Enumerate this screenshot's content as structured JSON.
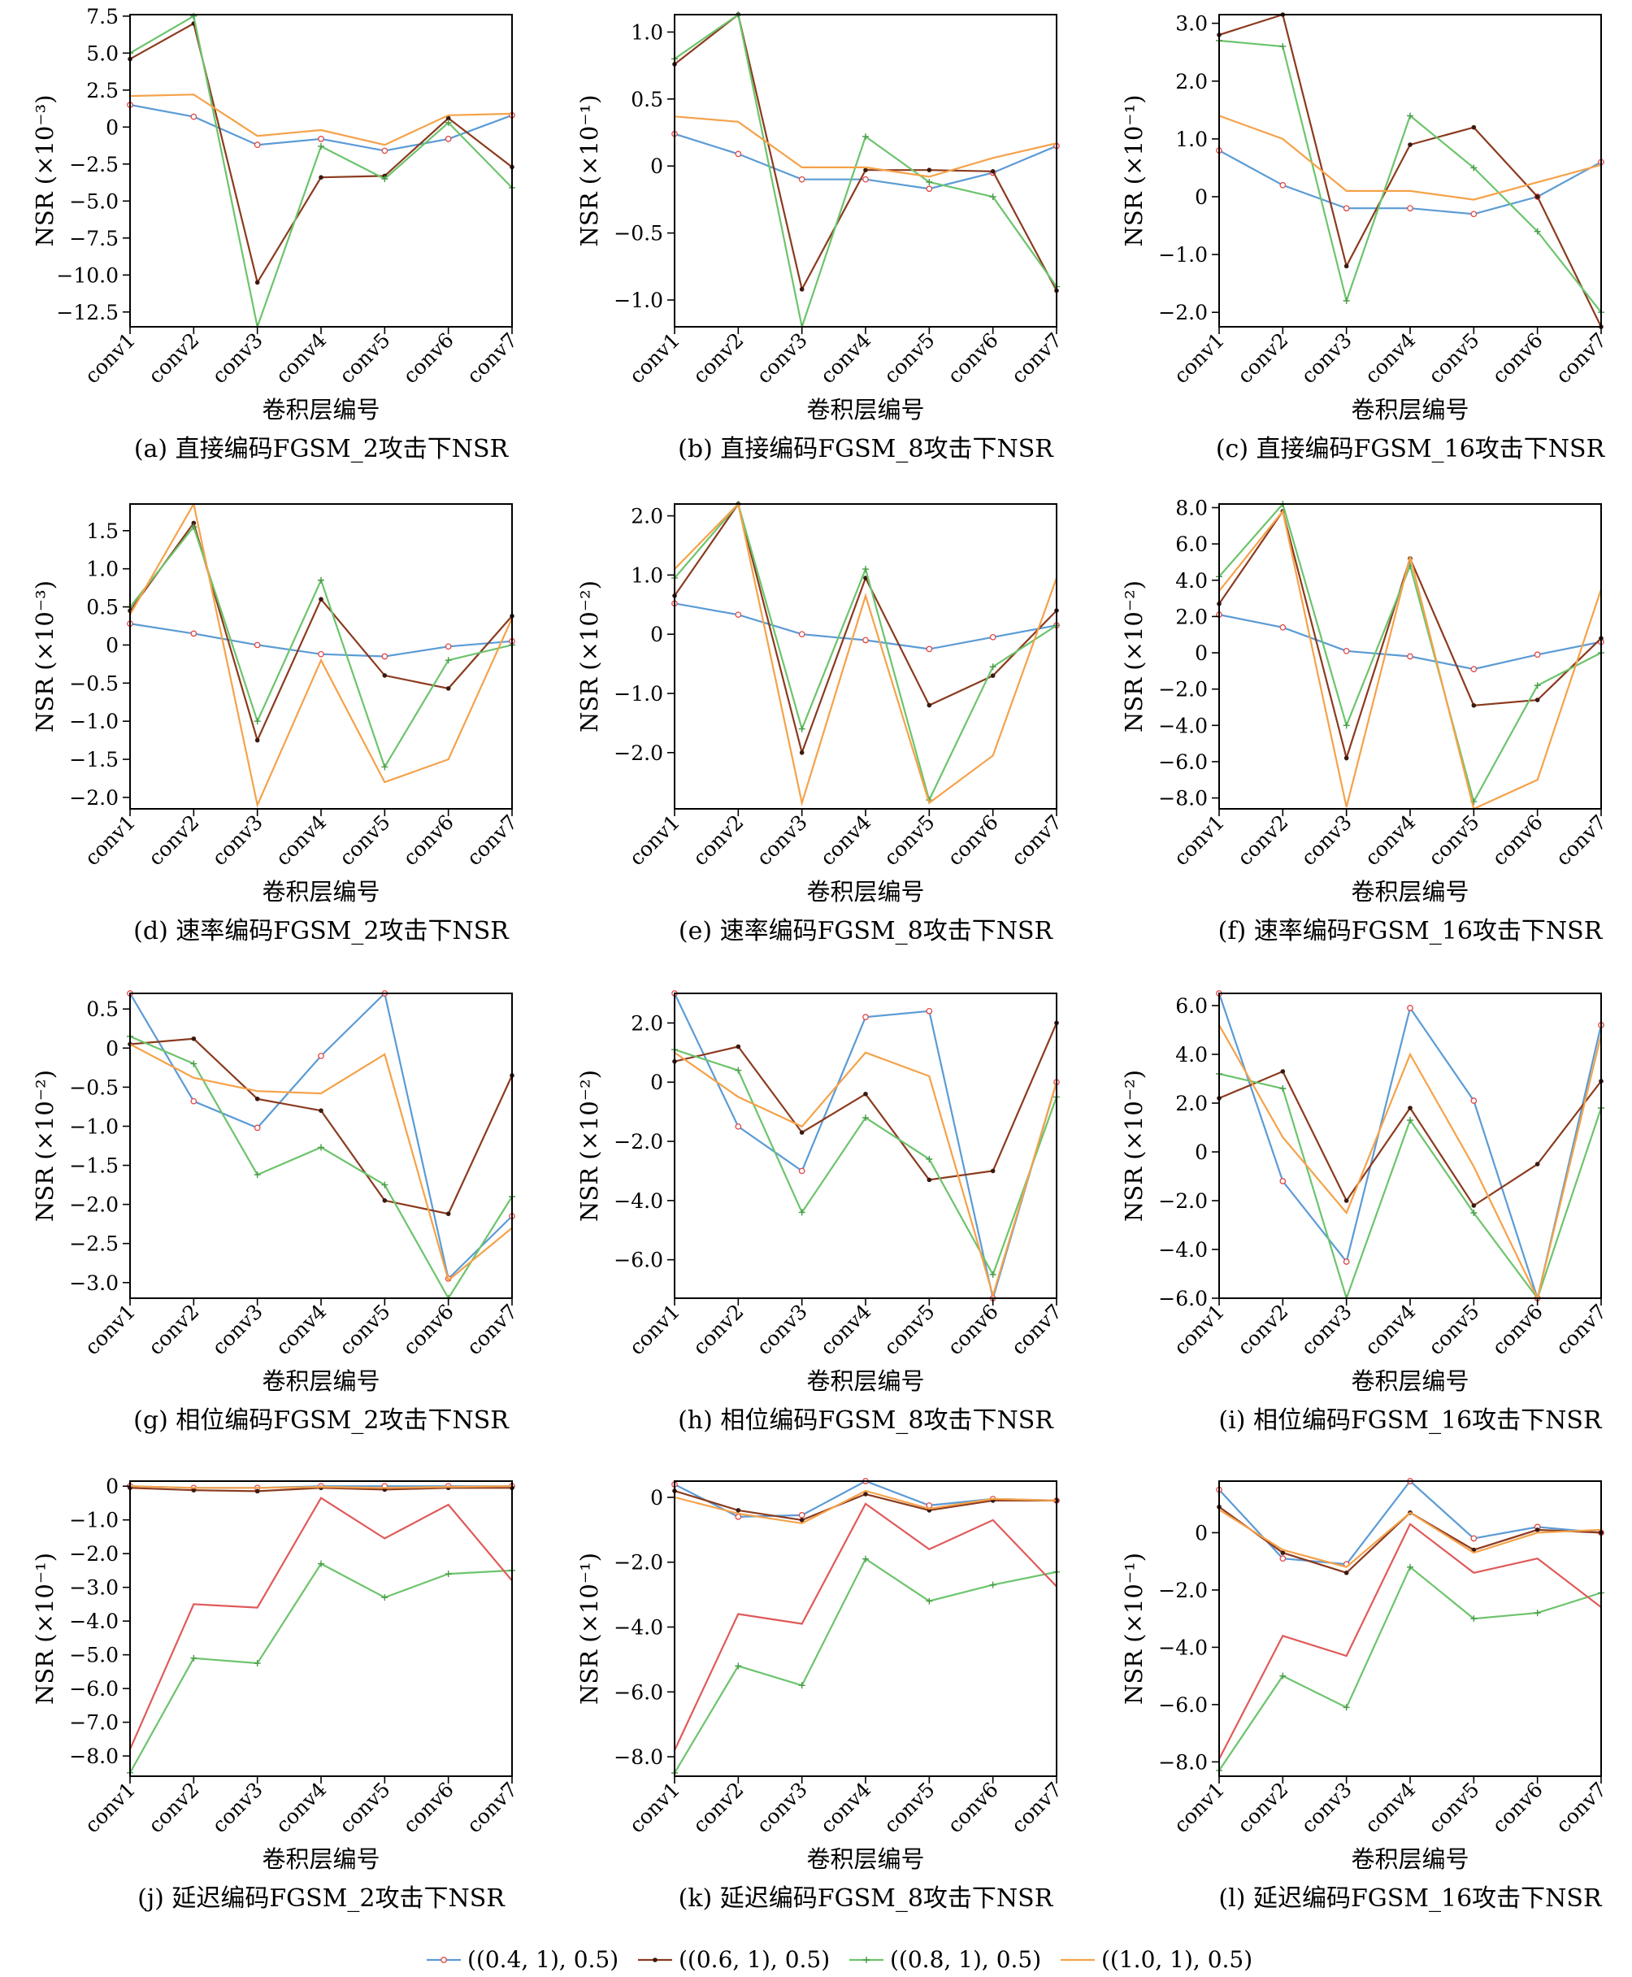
{
  "series_style": [
    {
      "name": "((0.4, 1), 0.5)",
      "color": "#5b9bd5",
      "marker": "circle"
    },
    {
      "name": "((0.6, 1), 0.5)",
      "color": "#8b3a1e",
      "marker": "dot"
    },
    {
      "name": "((0.8, 1), 0.5)",
      "color": "#6cc46c",
      "marker": "plus"
    },
    {
      "name": "((1.0, 1), 0.5)",
      "color": "#f5a24a",
      "marker": "none"
    }
  ],
  "legend": {
    "items": [
      "((0.4, 1), 0.5)",
      "((0.6, 1), 0.5)",
      "((0.8, 1), 0.5)",
      "((1.0, 1), 0.5)"
    ]
  },
  "chart_data": [
    {
      "type": "line",
      "caption": "(a) 直接编码FGSM_2攻击下NSR",
      "xlabel": "卷积层编号",
      "ylabel": "NSR (×10⁻³)",
      "categories": [
        "conv1",
        "conv2",
        "conv3",
        "conv4",
        "conv5",
        "conv6",
        "conv7"
      ],
      "ylim": [
        -13.5,
        7.6
      ],
      "yticks": [
        7.5,
        5.0,
        2.5,
        0,
        -2.5,
        -5.0,
        -7.5,
        -10.0,
        -12.5
      ],
      "ytick_labels": [
        "7.5",
        "5.0",
        "2.5",
        "0",
        "−2.5",
        "−5.0",
        "−7.5",
        "−10.0",
        "−12.5"
      ],
      "series": [
        {
          "name": "((0.4, 1), 0.5)",
          "values": [
            1.5,
            0.7,
            -1.2,
            -0.8,
            -1.6,
            -0.8,
            0.8
          ]
        },
        {
          "name": "((0.6, 1), 0.5)",
          "values": [
            4.6,
            7.0,
            -10.5,
            -3.4,
            -3.3,
            0.6,
            -2.7
          ]
        },
        {
          "name": "((0.8, 1), 0.5)",
          "values": [
            5.0,
            7.5,
            -13.5,
            -1.3,
            -3.5,
            0.3,
            -4.1
          ]
        },
        {
          "name": "((1.0, 1), 0.5)",
          "values": [
            2.1,
            2.2,
            -0.6,
            -0.2,
            -1.2,
            0.8,
            0.9
          ]
        }
      ]
    },
    {
      "type": "line",
      "caption": "(b) 直接编码FGSM_8攻击下NSR",
      "xlabel": "卷积层编号",
      "ylabel": "NSR (×10⁻¹)",
      "categories": [
        "conv1",
        "conv2",
        "conv3",
        "conv4",
        "conv5",
        "conv6",
        "conv7"
      ],
      "ylim": [
        -1.2,
        1.13
      ],
      "yticks": [
        1.0,
        0.5,
        0,
        -0.5,
        -1.0
      ],
      "ytick_labels": [
        "1.0",
        "0.5",
        "0",
        "−0.5",
        "−1.0"
      ],
      "series": [
        {
          "name": "((0.4, 1), 0.5)",
          "values": [
            0.24,
            0.09,
            -0.1,
            -0.1,
            -0.17,
            -0.05,
            0.15
          ]
        },
        {
          "name": "((0.6, 1), 0.5)",
          "values": [
            0.76,
            1.13,
            -0.92,
            -0.03,
            -0.03,
            -0.04,
            -0.93
          ]
        },
        {
          "name": "((0.8, 1), 0.5)",
          "values": [
            0.8,
            1.13,
            -1.2,
            0.22,
            -0.12,
            -0.23,
            -0.9
          ]
        },
        {
          "name": "((1.0, 1), 0.5)",
          "values": [
            0.37,
            0.33,
            -0.01,
            -0.01,
            -0.08,
            0.06,
            0.17
          ]
        }
      ]
    },
    {
      "type": "line",
      "caption": "(c) 直接编码FGSM_16攻击下NSR",
      "xlabel": "卷积层编号",
      "ylabel": "NSR (×10⁻¹)",
      "categories": [
        "conv1",
        "conv2",
        "conv3",
        "conv4",
        "conv5",
        "conv6",
        "conv7"
      ],
      "ylim": [
        -2.25,
        3.15
      ],
      "yticks": [
        3.0,
        2.0,
        1.0,
        0,
        -1.0,
        -2.0
      ],
      "ytick_labels": [
        "3.0",
        "2.0",
        "1.0",
        "0",
        "−1.0",
        "−2.0"
      ],
      "series": [
        {
          "name": "((0.4, 1), 0.5)",
          "values": [
            0.8,
            0.2,
            -0.2,
            -0.2,
            -0.3,
            0.0,
            0.6
          ]
        },
        {
          "name": "((0.6, 1), 0.5)",
          "values": [
            2.8,
            3.15,
            -1.2,
            0.9,
            1.2,
            0.0,
            -2.25
          ]
        },
        {
          "name": "((0.8, 1), 0.5)",
          "values": [
            2.7,
            2.6,
            -1.8,
            1.4,
            0.5,
            -0.6,
            -2.0
          ]
        },
        {
          "name": "((1.0, 1), 0.5)",
          "values": [
            1.4,
            1.0,
            0.1,
            0.1,
            -0.05,
            0.25,
            0.55
          ]
        }
      ]
    },
    {
      "type": "line",
      "caption": "(d) 速率编码FGSM_2攻击下NSR",
      "xlabel": "卷积层编号",
      "ylabel": "NSR (×10⁻³)",
      "categories": [
        "conv1",
        "conv2",
        "conv3",
        "conv4",
        "conv5",
        "conv6",
        "conv7"
      ],
      "ylim": [
        -2.15,
        1.85
      ],
      "yticks": [
        1.5,
        1.0,
        0.5,
        0,
        -0.5,
        -1.0,
        -1.5,
        -2.0
      ],
      "ytick_labels": [
        "1.5",
        "1.0",
        "0.5",
        "0",
        "−0.5",
        "−1.0",
        "−1.5",
        "−2.0"
      ],
      "series": [
        {
          "name": "((0.4, 1), 0.5)",
          "values": [
            0.28,
            0.15,
            0.0,
            -0.12,
            -0.15,
            -0.02,
            0.05
          ]
        },
        {
          "name": "((0.6, 1), 0.5)",
          "values": [
            0.45,
            1.6,
            -1.25,
            0.6,
            -0.4,
            -0.57,
            0.38
          ]
        },
        {
          "name": "((0.8, 1), 0.5)",
          "values": [
            0.5,
            1.55,
            -1.0,
            0.85,
            -1.6,
            -0.2,
            0.0
          ]
        },
        {
          "name": "((1.0, 1), 0.5)",
          "values": [
            0.4,
            1.85,
            -2.1,
            -0.2,
            -1.8,
            -1.5,
            0.35
          ]
        }
      ]
    },
    {
      "type": "line",
      "caption": "(e) 速率编码FGSM_8攻击下NSR",
      "xlabel": "卷积层编号",
      "ylabel": "NSR (×10⁻²)",
      "categories": [
        "conv1",
        "conv2",
        "conv3",
        "conv4",
        "conv5",
        "conv6",
        "conv7"
      ],
      "ylim": [
        -2.95,
        2.2
      ],
      "yticks": [
        2.0,
        1.0,
        0,
        -1.0,
        -2.0
      ],
      "ytick_labels": [
        "2.0",
        "1.0",
        "0",
        "−1.0",
        "−2.0"
      ],
      "series": [
        {
          "name": "((0.4, 1), 0.5)",
          "values": [
            0.52,
            0.33,
            0.0,
            -0.1,
            -0.25,
            -0.05,
            0.15
          ]
        },
        {
          "name": "((0.6, 1), 0.5)",
          "values": [
            0.65,
            2.2,
            -2.0,
            0.95,
            -1.2,
            -0.7,
            0.4
          ]
        },
        {
          "name": "((0.8, 1), 0.5)",
          "values": [
            0.95,
            2.2,
            -1.6,
            1.1,
            -2.8,
            -0.55,
            0.15
          ]
        },
        {
          "name": "((1.0, 1), 0.5)",
          "values": [
            1.1,
            2.2,
            -2.85,
            0.65,
            -2.85,
            -2.05,
            0.95
          ]
        }
      ]
    },
    {
      "type": "line",
      "caption": "(f) 速率编码FGSM_16攻击下NSR",
      "xlabel": "卷积层编号",
      "ylabel": "NSR (×10⁻²)",
      "categories": [
        "conv1",
        "conv2",
        "conv3",
        "conv4",
        "conv5",
        "conv6",
        "conv7"
      ],
      "ylim": [
        -8.6,
        8.2
      ],
      "yticks": [
        8.0,
        6.0,
        4.0,
        2.0,
        0,
        -2.0,
        -4.0,
        -6.0,
        -8.0
      ],
      "ytick_labels": [
        "8.0",
        "6.0",
        "4.0",
        "2.0",
        "0",
        "−2.0",
        "−4.0",
        "−6.0",
        "−8.0"
      ],
      "series": [
        {
          "name": "((0.4, 1), 0.5)",
          "values": [
            2.1,
            1.4,
            0.1,
            -0.2,
            -0.9,
            -0.1,
            0.6
          ]
        },
        {
          "name": "((0.6, 1), 0.5)",
          "values": [
            2.7,
            7.8,
            -5.8,
            5.2,
            -2.9,
            -2.6,
            0.8
          ]
        },
        {
          "name": "((0.8, 1), 0.5)",
          "values": [
            4.2,
            8.2,
            -4.0,
            4.8,
            -8.2,
            -1.8,
            0.0
          ]
        },
        {
          "name": "((1.0, 1), 0.5)",
          "values": [
            3.4,
            7.8,
            -8.5,
            5.3,
            -8.6,
            -7.0,
            3.5
          ]
        }
      ]
    },
    {
      "type": "line",
      "caption": "(g) 相位编码FGSM_2攻击下NSR",
      "xlabel": "卷积层编号",
      "ylabel": "NSR (×10⁻²)",
      "categories": [
        "conv1",
        "conv2",
        "conv3",
        "conv4",
        "conv5",
        "conv6",
        "conv7"
      ],
      "ylim": [
        -3.2,
        0.7
      ],
      "yticks": [
        0.5,
        0,
        -0.5,
        -1.0,
        -1.5,
        -2.0,
        -2.5,
        -3.0
      ],
      "ytick_labels": [
        "0.5",
        "0",
        "−0.5",
        "−1.0",
        "−1.5",
        "−2.0",
        "−2.5",
        "−3.0"
      ],
      "series": [
        {
          "name": "((0.4, 1), 0.5)",
          "values": [
            0.7,
            -0.68,
            -1.02,
            -0.1,
            0.7,
            -2.95,
            -2.15
          ]
        },
        {
          "name": "((0.6, 1), 0.5)",
          "values": [
            0.05,
            0.12,
            -0.65,
            -0.8,
            -1.95,
            -2.12,
            -0.35
          ]
        },
        {
          "name": "((0.8, 1), 0.5)",
          "values": [
            0.15,
            -0.2,
            -1.62,
            -1.27,
            -1.75,
            -3.2,
            -1.9
          ]
        },
        {
          "name": "((1.0, 1), 0.5)",
          "values": [
            0.05,
            -0.38,
            -0.55,
            -0.58,
            -0.08,
            -2.97,
            -2.3
          ]
        }
      ]
    },
    {
      "type": "line",
      "caption": "(h) 相位编码FGSM_8攻击下NSR",
      "xlabel": "卷积层编号",
      "ylabel": "NSR (×10⁻²)",
      "categories": [
        "conv1",
        "conv2",
        "conv3",
        "conv4",
        "conv5",
        "conv6",
        "conv7"
      ],
      "ylim": [
        -7.3,
        3.0
      ],
      "yticks": [
        2.0,
        0,
        -2.0,
        -4.0,
        -6.0
      ],
      "ytick_labels": [
        "2.0",
        "0",
        "−2.0",
        "−4.0",
        "−6.0"
      ],
      "series": [
        {
          "name": "((0.4, 1), 0.5)",
          "values": [
            3.0,
            -1.5,
            -3.0,
            2.2,
            2.4,
            -7.3,
            0.0
          ]
        },
        {
          "name": "((0.6, 1), 0.5)",
          "values": [
            0.7,
            1.2,
            -1.7,
            -0.4,
            -3.3,
            -3.0,
            2.0
          ]
        },
        {
          "name": "((0.8, 1), 0.5)",
          "values": [
            1.1,
            0.4,
            -4.4,
            -1.2,
            -2.6,
            -6.5,
            -0.5
          ]
        },
        {
          "name": "((1.0, 1), 0.5)",
          "values": [
            1.0,
            -0.5,
            -1.5,
            1.0,
            0.2,
            -7.2,
            0.0
          ]
        }
      ]
    },
    {
      "type": "line",
      "caption": "(i) 相位编码FGSM_16攻击下NSR",
      "xlabel": "卷积层编号",
      "ylabel": "NSR (×10⁻²)",
      "categories": [
        "conv1",
        "conv2",
        "conv3",
        "conv4",
        "conv5",
        "conv6",
        "conv7"
      ],
      "ylim": [
        -6.0,
        6.5
      ],
      "yticks": [
        6.0,
        4.0,
        2.0,
        0,
        -2.0,
        -4.0,
        -6.0
      ],
      "ytick_labels": [
        "6.0",
        "4.0",
        "2.0",
        "0",
        "−2.0",
        "−4.0",
        "−6.0"
      ],
      "series": [
        {
          "name": "((0.4, 1), 0.5)",
          "values": [
            6.5,
            -1.2,
            -4.5,
            5.9,
            2.1,
            -6.0,
            5.2
          ]
        },
        {
          "name": "((0.6, 1), 0.5)",
          "values": [
            2.2,
            3.3,
            -2.0,
            1.8,
            -2.2,
            -0.5,
            2.9
          ]
        },
        {
          "name": "((0.8, 1), 0.5)",
          "values": [
            3.2,
            2.6,
            -6.0,
            1.3,
            -2.5,
            -6.0,
            1.8
          ]
        },
        {
          "name": "((1.0, 1), 0.5)",
          "values": [
            5.2,
            0.6,
            -2.5,
            4.0,
            -0.6,
            -6.0,
            4.8
          ]
        }
      ]
    },
    {
      "type": "line",
      "caption": "(j) 延迟编码FGSM_2攻击下NSR",
      "xlabel": "卷积层编号",
      "ylabel": "NSR (×10⁻¹)",
      "categories": [
        "conv1",
        "conv2",
        "conv3",
        "conv4",
        "conv5",
        "conv6",
        "conv7"
      ],
      "ylim": [
        -8.6,
        0.15
      ],
      "yticks": [
        0,
        -1.0,
        -2.0,
        -3.0,
        -4.0,
        -5.0,
        -6.0,
        -7.0,
        -8.0
      ],
      "ytick_labels": [
        "0",
        "−1.0",
        "−2.0",
        "−3.0",
        "−4.0",
        "−5.0",
        "−6.0",
        "−7.0",
        "−8.0"
      ],
      "series": [
        {
          "name": "((0.4, 1), 0.5)",
          "values": [
            0.0,
            -0.05,
            -0.05,
            0.0,
            0.0,
            0.0,
            0.0
          ]
        },
        {
          "name": "((0.6, 1), 0.5)",
          "values": [
            -0.05,
            -0.12,
            -0.15,
            -0.05,
            -0.1,
            -0.05,
            -0.05
          ]
        },
        {
          "name": "((0.8, 1), 0.5)",
          "values": [
            -8.5,
            -5.1,
            -5.25,
            -2.3,
            -3.3,
            -2.6,
            -2.5
          ]
        },
        {
          "name": "((1.0, 1), 0.5)",
          "values": [
            0.0,
            -0.05,
            -0.05,
            -0.02,
            -0.05,
            -0.02,
            0.0
          ]
        },
        {
          "name": "",
          "color": "#e05a5a",
          "marker": "none",
          "values": [
            -7.8,
            -3.5,
            -3.6,
            -0.35,
            -1.55,
            -0.55,
            -2.8
          ]
        }
      ]
    },
    {
      "type": "line",
      "caption": "(k) 延迟编码FGSM_8攻击下NSR",
      "xlabel": "卷积层编号",
      "ylabel": "NSR (×10⁻¹)",
      "categories": [
        "conv1",
        "conv2",
        "conv3",
        "conv4",
        "conv5",
        "conv6",
        "conv7"
      ],
      "ylim": [
        -8.6,
        0.5
      ],
      "yticks": [
        0,
        -2.0,
        -4.0,
        -6.0,
        -8.0
      ],
      "ytick_labels": [
        "0",
        "−2.0",
        "−4.0",
        "−6.0",
        "−8.0"
      ],
      "series": [
        {
          "name": "((0.4, 1), 0.5)",
          "values": [
            0.4,
            -0.6,
            -0.55,
            0.5,
            -0.25,
            -0.05,
            -0.1
          ]
        },
        {
          "name": "((0.6, 1), 0.5)",
          "values": [
            0.2,
            -0.4,
            -0.7,
            0.1,
            -0.4,
            -0.1,
            -0.1
          ]
        },
        {
          "name": "((0.8, 1), 0.5)",
          "values": [
            -8.5,
            -5.2,
            -5.8,
            -1.9,
            -3.2,
            -2.7,
            -2.3
          ]
        },
        {
          "name": "((1.0, 1), 0.5)",
          "values": [
            0.0,
            -0.5,
            -0.8,
            0.2,
            -0.35,
            -0.05,
            -0.1
          ]
        },
        {
          "name": "",
          "color": "#e05a5a",
          "marker": "none",
          "values": [
            -7.8,
            -3.6,
            -3.9,
            -0.2,
            -1.6,
            -0.7,
            -2.75
          ]
        }
      ]
    },
    {
      "type": "line",
      "caption": "(l) 延迟编码FGSM_16攻击下NSR",
      "xlabel": "卷积层编号",
      "ylabel": "NSR (×10⁻¹)",
      "categories": [
        "conv1",
        "conv2",
        "conv3",
        "conv4",
        "conv5",
        "conv6",
        "conv7"
      ],
      "ylim": [
        -8.5,
        1.8
      ],
      "yticks": [
        0,
        -2.0,
        -4.0,
        -6.0,
        -8.0
      ],
      "ytick_labels": [
        "0",
        "−2.0",
        "−4.0",
        "−6.0",
        "−8.0"
      ],
      "series": [
        {
          "name": "((0.4, 1), 0.5)",
          "values": [
            1.5,
            -0.9,
            -1.1,
            1.8,
            -0.2,
            0.2,
            0.0
          ]
        },
        {
          "name": "((0.6, 1), 0.5)",
          "values": [
            0.9,
            -0.7,
            -1.4,
            0.7,
            -0.6,
            0.1,
            0.0
          ]
        },
        {
          "name": "((0.8, 1), 0.5)",
          "values": [
            -8.3,
            -5.0,
            -6.1,
            -1.2,
            -3.0,
            -2.8,
            -2.1
          ]
        },
        {
          "name": "((1.0, 1), 0.5)",
          "values": [
            0.8,
            -0.6,
            -1.2,
            0.7,
            -0.7,
            0.0,
            0.1
          ]
        },
        {
          "name": "",
          "color": "#e05a5a",
          "marker": "none",
          "values": [
            -7.9,
            -3.6,
            -4.3,
            0.3,
            -1.4,
            -0.9,
            -2.6
          ]
        }
      ]
    }
  ]
}
